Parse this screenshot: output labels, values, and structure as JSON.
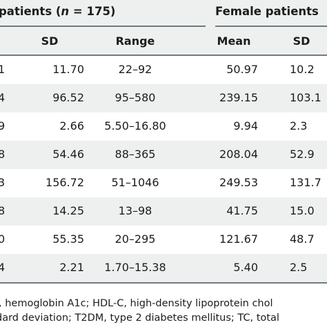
{
  "table": {
    "group_headers": {
      "male": {
        "prefix": "patients (",
        "n_var": "n",
        "suffix": " = 175)"
      },
      "female": "Female patients"
    },
    "columns": [
      "SD",
      "Range",
      "Mean",
      "SD"
    ],
    "rows": [
      {
        "cut": "1",
        "sd": "11.70",
        "range": "22–92",
        "f_mean": "50.97",
        "f_sd": "10.2"
      },
      {
        "cut": "4",
        "sd": "96.52",
        "range": "95–580",
        "f_mean": "239.15",
        "f_sd": "103.1"
      },
      {
        "cut": "9",
        "sd": "2.66",
        "range": "5.50–16.80",
        "f_mean": "9.94",
        "f_sd": "2.3"
      },
      {
        "cut": "8",
        "sd": "54.46",
        "range": "88–365",
        "f_mean": "208.04",
        "f_sd": "52.9"
      },
      {
        "cut": "3",
        "sd": "156.72",
        "range": "51–1046",
        "f_mean": "249.53",
        "f_sd": "131.7"
      },
      {
        "cut": "8",
        "sd": "14.25",
        "range": "13–98",
        "f_mean": "41.75",
        "f_sd": "15.0"
      },
      {
        "cut": "0",
        "sd": "55.35",
        "range": "20–295",
        "f_mean": "121.67",
        "f_sd": "48.7"
      },
      {
        "cut": "4",
        "sd": "2.21",
        "range": "1.70–15.38",
        "f_mean": "5.40",
        "f_sd": "2.5"
      }
    ],
    "footnote": [
      ", hemoglobin A1c; HDL-C, high-density lipoprotein chol",
      "dard deviation; T2DM, type 2 diabetes mellitus; TC, total"
    ]
  },
  "colors": {
    "header_bg": "#eef0f0",
    "rule": "#6f7a80",
    "text": "#1c1c1c"
  }
}
